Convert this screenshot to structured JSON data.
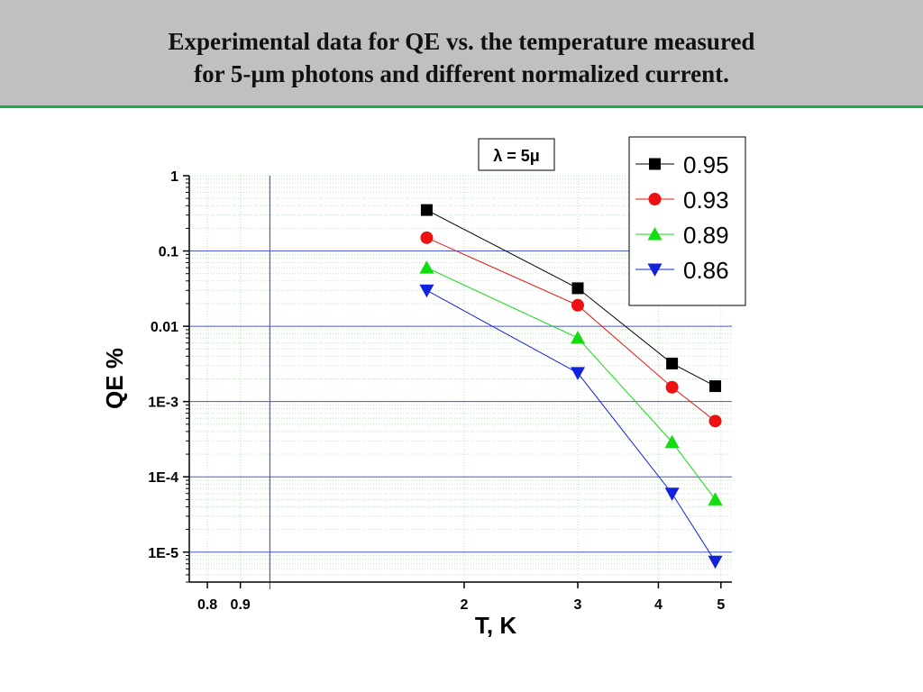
{
  "slide": {
    "title_line1": "Experimental data for QE vs. the temperature measured",
    "title_line2": "for 5-µm photons  and different normalized current.",
    "title_background": "#c0c0c0",
    "rule_color": "#1aa84a"
  },
  "chart_data": {
    "type": "scatter",
    "xlabel": "T, K",
    "ylabel": "QE %",
    "x_scale": "log",
    "y_scale": "log",
    "xlim": [
      0.75,
      5.2
    ],
    "ylim": [
      4e-06,
      1
    ],
    "x_ticks": [
      {
        "value": 0.8,
        "label": "0.8"
      },
      {
        "value": 0.9,
        "label": "0.9"
      },
      {
        "value": 2,
        "label": "2"
      },
      {
        "value": 3,
        "label": "3"
      },
      {
        "value": 4,
        "label": "4"
      },
      {
        "value": 5,
        "label": "5"
      }
    ],
    "y_ticks": [
      {
        "value": 1,
        "label": "1"
      },
      {
        "value": 0.1,
        "label": "0.1"
      },
      {
        "value": 0.01,
        "label": "0.01"
      },
      {
        "value": 0.001,
        "label": "1E-3"
      },
      {
        "value": 0.0001,
        "label": "1E-4"
      },
      {
        "value": 1e-05,
        "label": "1E-5"
      }
    ],
    "reference_line_x": 1.0,
    "grid": true,
    "annotation": "λ = 5μ",
    "legend_position": "top-right",
    "series": [
      {
        "name": "0.95",
        "marker": "square",
        "color": "#000000",
        "x": [
          1.75,
          3.0,
          4.2,
          4.9
        ],
        "y": [
          0.35,
          0.032,
          0.0032,
          0.0016
        ]
      },
      {
        "name": "0.93",
        "marker": "circle",
        "color": "#ee1111",
        "x": [
          1.75,
          3.0,
          4.2,
          4.9
        ],
        "y": [
          0.15,
          0.019,
          0.00155,
          0.00055
        ]
      },
      {
        "name": "0.89",
        "marker": "triangle-up",
        "color": "#11dd11",
        "x": [
          1.75,
          3.0,
          4.2,
          4.9
        ],
        "y": [
          0.06,
          0.007,
          0.00029,
          5e-05
        ]
      },
      {
        "name": "0.86",
        "marker": "triangle-down",
        "color": "#1122dd",
        "x": [
          1.75,
          3.0,
          4.2,
          4.9
        ],
        "y": [
          0.03,
          0.0024,
          6e-05,
          7.5e-06
        ]
      }
    ]
  }
}
